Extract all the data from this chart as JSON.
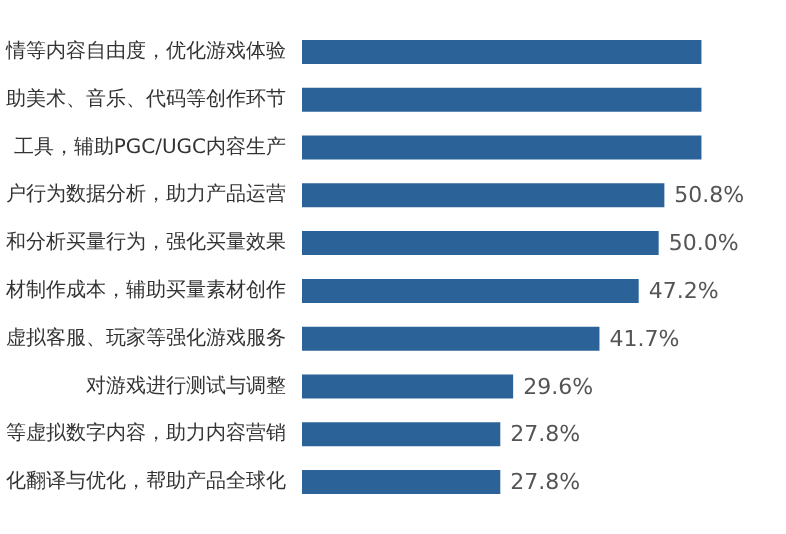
{
  "chart_data": {
    "type": "bar",
    "orientation": "horizontal",
    "categories": [
      "情等内容自由度，优化游戏体验",
      "助美术、音乐、代码等创作环节",
      "工具，辅助PGC/UGC内容生产",
      "户行为数据分析，助力产品运营",
      "和分析买量行为，强化买量效果",
      "材制作成本，辅助买量素材创作",
      "虚拟客服、玩家等强化游戏服务",
      "对游戏进行测试与调整",
      "等虚拟数字内容，助力内容营销",
      "化翻译与优化，帮助产品全球化"
    ],
    "values": [
      56,
      56,
      56,
      50.8,
      50.0,
      47.2,
      41.7,
      29.6,
      27.8,
      27.8
    ],
    "value_labels": [
      null,
      null,
      null,
      "50.8%",
      "50.0%",
      "47.2%",
      "41.7%",
      "29.6%",
      "27.8%",
      "27.8%"
    ],
    "color": "#2b6399",
    "grid": false
  }
}
